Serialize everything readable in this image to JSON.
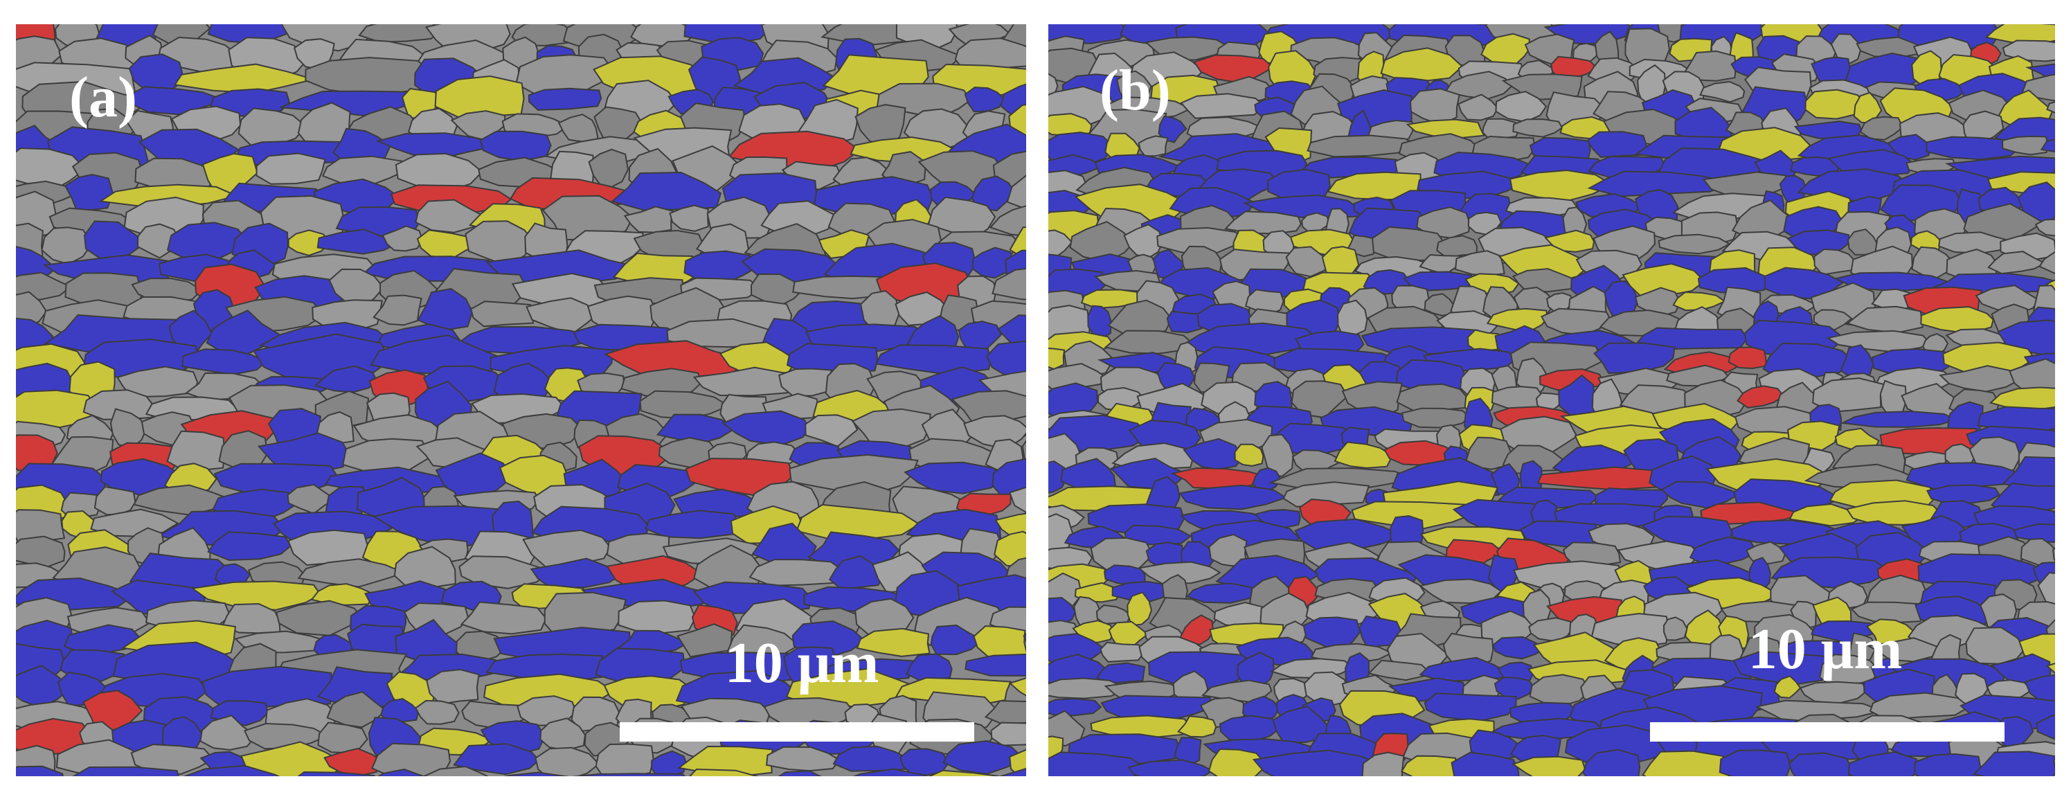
{
  "panels": [
    {
      "label": "(a)",
      "scale_bar": "10 μm"
    },
    {
      "label": "(b)",
      "scale_bar": "10 μm"
    }
  ]
}
